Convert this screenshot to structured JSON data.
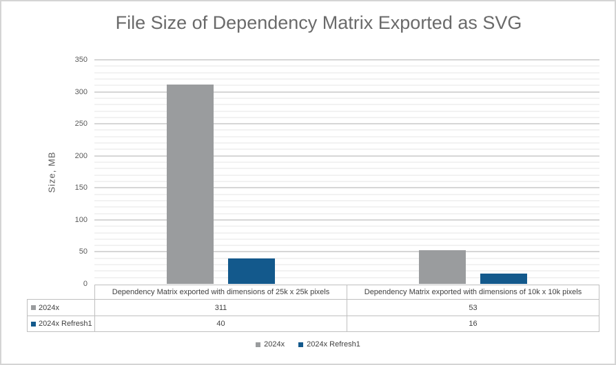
{
  "chart_data": {
    "type": "bar",
    "title": "File Size of Dependency Matrix Exported as SVG",
    "xlabel": "",
    "ylabel": "Size, MB",
    "categories": [
      "Dependency Matrix exported with dimensions of 25k x 25k pixels",
      "Dependency Matrix exported with dimensions of 10k x 10k pixels"
    ],
    "series": [
      {
        "name": "2024x",
        "color": "#9a9c9e",
        "values": [
          311,
          53
        ]
      },
      {
        "name": "2024x Refresh1",
        "color": "#13598c",
        "values": [
          40,
          16
        ]
      }
    ],
    "ylim": [
      0,
      350
    ],
    "yticks": [
      0,
      50,
      100,
      150,
      200,
      250,
      300,
      350
    ],
    "major_unit": 50,
    "minor_unit": 10,
    "grid": true,
    "legend_position": "bottom",
    "data_table_shown": true
  }
}
